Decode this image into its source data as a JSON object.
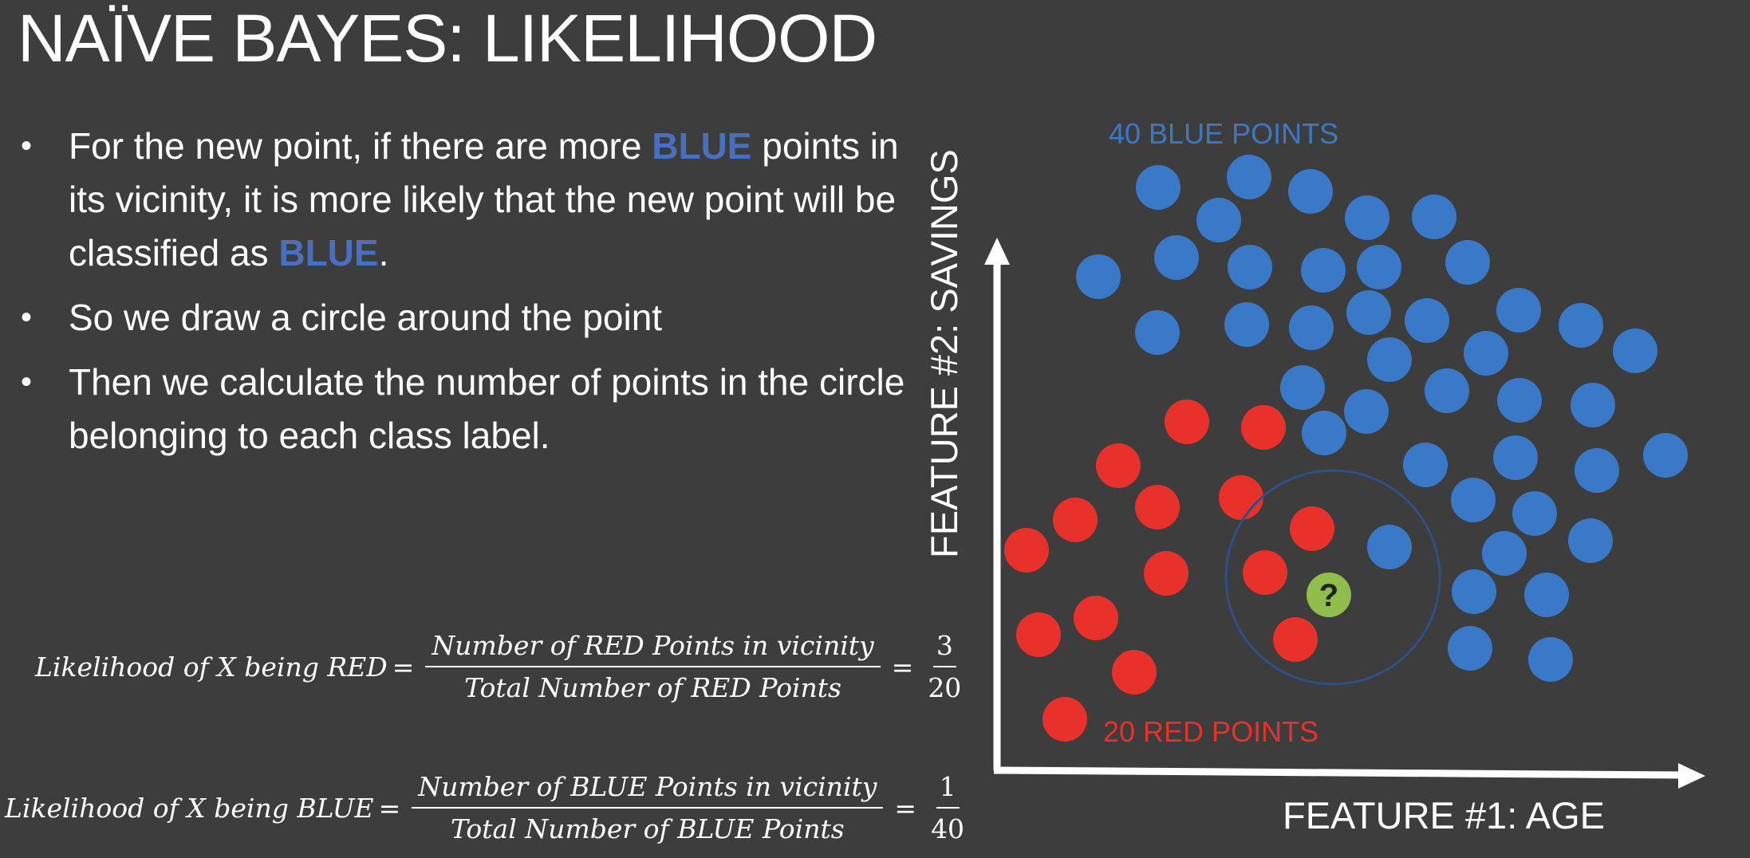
{
  "title": "NAÏVE BAYES: LIKELIHOOD",
  "bullets": [
    {
      "parts": [
        {
          "text": "For the new point, if there are more "
        },
        {
          "text": "BLUE",
          "highlight": true
        },
        {
          "text": " points in its vicinity, it is more likely that the new point will be classified as "
        },
        {
          "text": "BLUE",
          "highlight": true
        },
        {
          "text": "."
        }
      ]
    },
    {
      "parts": [
        {
          "text": "So we draw a circle around the point"
        }
      ]
    },
    {
      "parts": [
        {
          "text": "Then we calculate the number of points in the circle belonging to each class label."
        }
      ]
    }
  ],
  "formulas": {
    "red": {
      "lhs": "Likelihood of X being RED",
      "numerator": "Number of RED Points in vicinity",
      "denominator": "Total Number of RED Points",
      "value_num": "3",
      "value_den": "20"
    },
    "blue": {
      "lhs": "Likelihood of X being BLUE",
      "numerator": "Number of BLUE Points in vicinity",
      "denominator": "Total Number of BLUE Points",
      "value_num": "1",
      "value_den": "40"
    }
  },
  "plot": {
    "blue_label": "40 BLUE POINTS",
    "red_label": "20 RED POINTS",
    "x_axis_label": "FEATURE #1: AGE",
    "y_axis_label": "FEATURE #2: SAVINGS",
    "new_point_label": "?",
    "colors": {
      "blue": "#3a78c8",
      "red": "#e8312a",
      "new_point": "#8fbf4a",
      "highlight": "#4a6fbe",
      "circle": "#2f4f86"
    }
  }
}
